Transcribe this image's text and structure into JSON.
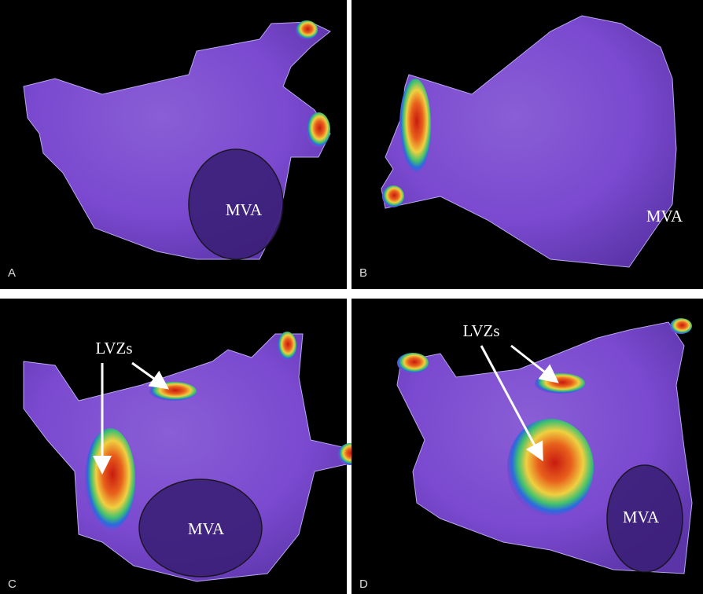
{
  "panels": [
    {
      "label": "A",
      "mva": "MVA"
    },
    {
      "label": "B",
      "mva": "MVA"
    },
    {
      "label": "C",
      "mva": "MVA",
      "lvz": "LVZs"
    },
    {
      "label": "D",
      "mva": "MVA",
      "lvz": "LVZs"
    }
  ]
}
